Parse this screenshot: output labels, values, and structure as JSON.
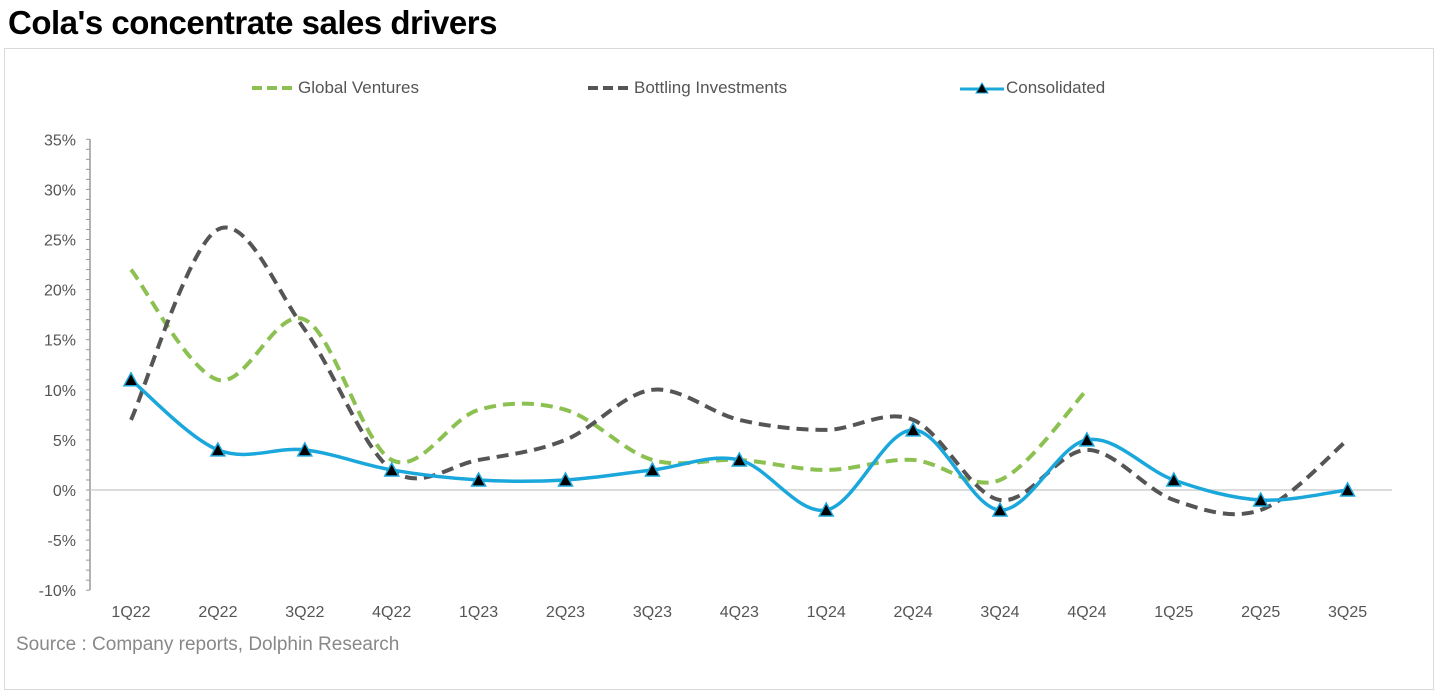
{
  "chart_data": {
    "type": "line",
    "title": "Cola's concentrate sales  drivers",
    "categories": [
      "1Q22",
      "2Q22",
      "3Q22",
      "4Q22",
      "1Q23",
      "2Q23",
      "3Q23",
      "4Q23",
      "1Q24",
      "2Q24",
      "3Q24",
      "4Q24",
      "1Q25",
      "2Q25",
      "3Q25"
    ],
    "series": [
      {
        "name": "Global Ventures",
        "color": "#8cc152",
        "style": "dashed",
        "values": [
          22,
          11,
          17,
          3,
          8,
          8,
          3,
          3,
          2,
          3,
          1,
          10,
          null,
          null,
          null
        ]
      },
      {
        "name": "Bottling Investments",
        "color": "#555555",
        "style": "dashed",
        "values": [
          7,
          26,
          16,
          2,
          3,
          5,
          10,
          7,
          6,
          7,
          -1,
          4,
          -1,
          -2,
          5
        ]
      },
      {
        "name": "Consolidated",
        "color": "#1aa7dc",
        "style": "solid",
        "marker": "triangle",
        "values": [
          11,
          4,
          4,
          2,
          1,
          1,
          2,
          3,
          -2,
          6,
          -2,
          5,
          1,
          -1,
          0
        ]
      }
    ],
    "yticks": [
      "35%",
      "30%",
      "25%",
      "20%",
      "15%",
      "10%",
      "5%",
      "0%",
      "-5%",
      "-10%"
    ],
    "ylim": [
      -10,
      35
    ],
    "legend": "top",
    "grid": false,
    "smooth": true
  },
  "source": "Source : Company reports, Dolphin Research"
}
